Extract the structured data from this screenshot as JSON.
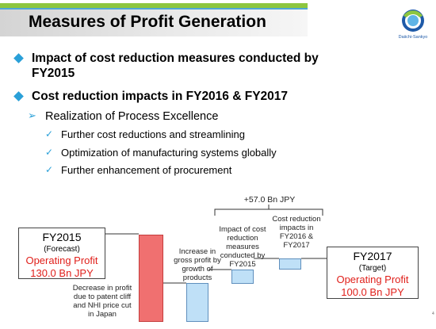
{
  "slide": {
    "title": "Measures of Profit Generation",
    "logo_text": "Daiichi-Sankyo",
    "page_number": "4"
  },
  "bullets": [
    {
      "lines": [
        "Impact of cost reduction measures conducted by",
        "FY2015"
      ]
    },
    {
      "lines": [
        "Cost reduction impacts in FY2016 & FY2017"
      ]
    }
  ],
  "sub_bullet": "Realization of Process Excellence",
  "checklist": [
    "Further cost reductions and streamlining",
    "Optimization of manufacturing systems globally",
    "Further enhancement of procurement"
  ],
  "colors": {
    "accent_green": "#8dc63f",
    "accent_blue": "#2aa0d8",
    "decrease_bar": "#f07070",
    "increase_bar": "#bfe0f7",
    "profit_text": "#e0201b"
  },
  "waterfall": {
    "total_increase": "+57.0 Bn JPY",
    "start": {
      "year": "FY2015",
      "period": "(Forecast)",
      "metric": "Operating Profit",
      "value": "130.0 Bn JPY"
    },
    "end": {
      "year": "FY2017",
      "period": "(Target)",
      "metric": "Operating Profit",
      "value": "100.0 Bn JPY"
    },
    "steps": [
      {
        "kind": "decrease",
        "lines": [
          "Decrease in profit",
          "due to patent cliff",
          "and NHI price cut",
          "in Japan"
        ]
      },
      {
        "kind": "increase",
        "lines": [
          "Increase in",
          "gross profit by",
          "growth of",
          "products"
        ]
      },
      {
        "kind": "increase",
        "lines": [
          "Impact of cost",
          "reduction",
          "measures",
          "conducted by",
          "FY2015"
        ]
      },
      {
        "kind": "increase",
        "lines": [
          "Cost reduction",
          "impacts in",
          "FY2016 &",
          "FY2017"
        ]
      }
    ]
  }
}
